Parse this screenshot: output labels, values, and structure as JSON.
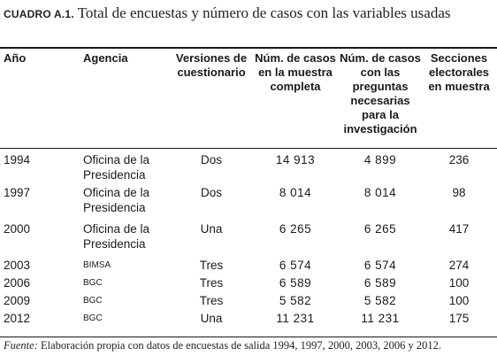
{
  "caption": {
    "label": "CUADRO A.1.",
    "title": "Total de encuestas y número de casos con las variables usadas"
  },
  "table": {
    "headers": {
      "year": "Año",
      "agency": "Agencia",
      "versions": "Versiones de cuestionario",
      "full_sample": "Núm. de casos en la muestra completa",
      "needed_cases": "Núm. de casos con las preguntas necesarias para la investigación",
      "sections": "Secciones electorales en muestra"
    },
    "rows": [
      {
        "year": "1994",
        "agency": "Oficina de la Presidencia",
        "versions": "Dos",
        "full_sample": "14 913",
        "needed_cases": "4 899",
        "sections": "236"
      },
      {
        "year": "1997",
        "agency": "Oficina de la Presidencia",
        "versions": "Dos",
        "full_sample": "8 014",
        "needed_cases": "8 014",
        "sections": "98"
      },
      {
        "year": "2000",
        "agency": "Oficina de la Presidencia",
        "versions": "Una",
        "full_sample": "6 265",
        "needed_cases": "6 265",
        "sections": "417"
      },
      {
        "year": "2003",
        "agency": "BIMSA",
        "versions": "Tres",
        "full_sample": "6 574",
        "needed_cases": "6 574",
        "sections": "274"
      },
      {
        "year": "2006",
        "agency": "BGC",
        "versions": "Tres",
        "full_sample": "6 589",
        "needed_cases": "6 589",
        "sections": "100"
      },
      {
        "year": "2009",
        "agency": "BGC",
        "versions": "Tres",
        "full_sample": "5 582",
        "needed_cases": "5 582",
        "sections": "100"
      },
      {
        "year": "2012",
        "agency": "BGC",
        "versions": "Una",
        "full_sample": "11 231",
        "needed_cases": "11 231",
        "sections": "175"
      }
    ]
  },
  "source": {
    "label": "Fuente:",
    "text": "Elaboración propia con datos de encuestas de salida 1994, 1997, 2000, 2003, 2006 y 2012."
  }
}
